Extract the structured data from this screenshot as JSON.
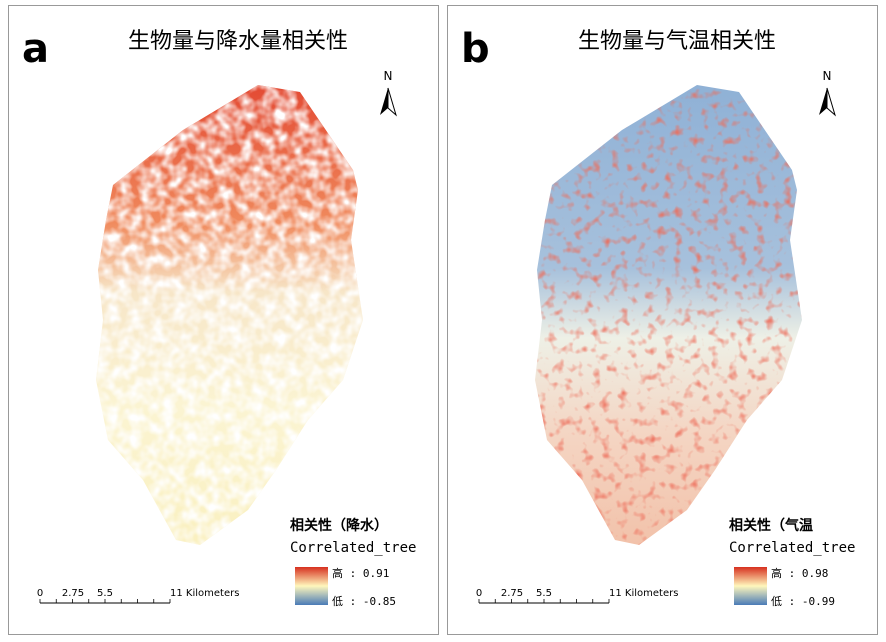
{
  "panels": [
    {
      "label": "a",
      "title": "生物量与降水量相关性",
      "north": "N",
      "legend": {
        "title": "相关性（降水）",
        "subtitle": "Correlated_tree",
        "high": "高 : 0.91",
        "low": "低 : -0.85"
      },
      "scale": [
        "0",
        "2.75",
        "5.5",
        "11 Kilometers"
      ]
    },
    {
      "label": "b",
      "title": "生物量与气温相关性",
      "north": "N",
      "legend": {
        "title": "相关性（气温",
        "subtitle": "Correlated_tree",
        "high": "高 : 0.98",
        "low": "低 : -0.99"
      },
      "scale": [
        "0",
        "2.75",
        "5.5",
        "11 Kilometers"
      ]
    }
  ]
}
